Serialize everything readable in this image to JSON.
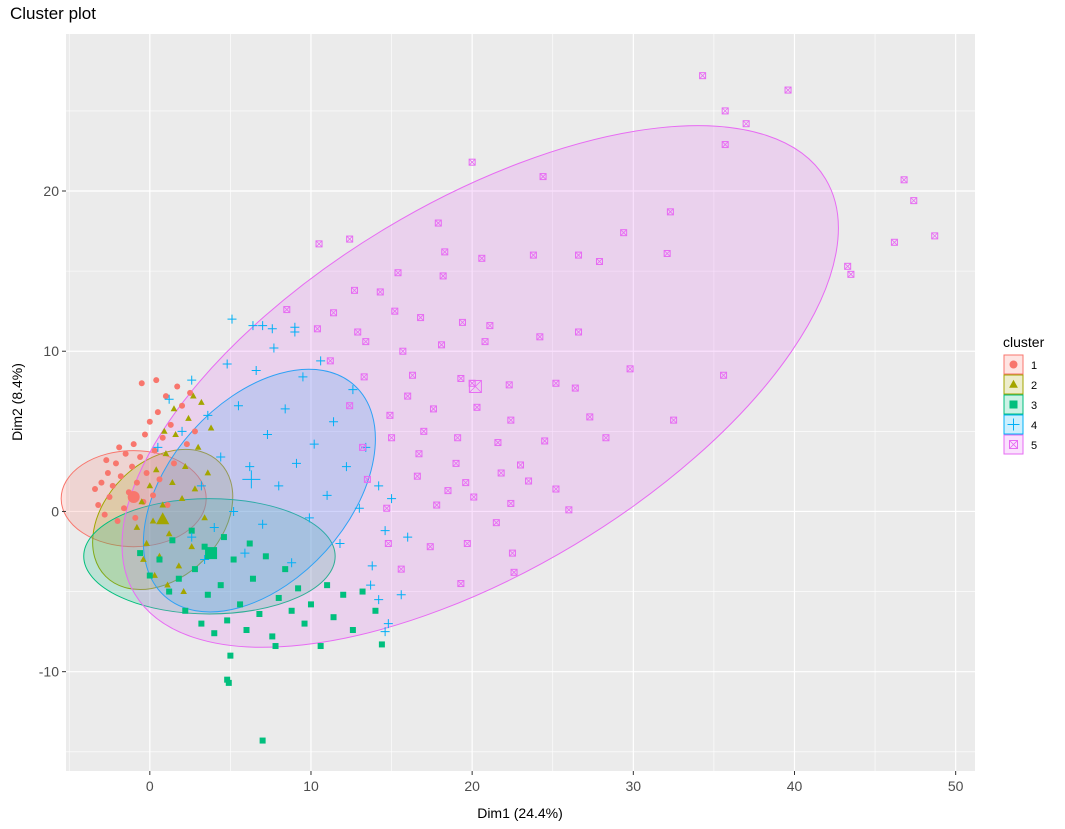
{
  "chart_data": {
    "type": "scatter",
    "title": "Cluster plot",
    "xlabel": "Dim1 (24.4%)",
    "ylabel": "Dim2 (8.4%)",
    "xlim": [
      -5.2,
      51.2
    ],
    "ylim": [
      -16.2,
      29.8
    ],
    "x_ticks": [
      0,
      10,
      20,
      30,
      40,
      50
    ],
    "y_ticks": [
      -10,
      0,
      10,
      20
    ],
    "grid": true,
    "legend": {
      "title": "cluster",
      "position": "right"
    },
    "series": [
      {
        "name": "1",
        "color": "#F8766D",
        "shape": "circle",
        "center": [
          -1.0,
          0.9
        ],
        "ellipse": {
          "cx": -1.0,
          "cy": 0.8,
          "rx": 4.5,
          "ry": 3.0,
          "angle": 0
        },
        "points": [
          [
            -3.4,
            1.4
          ],
          [
            -3.2,
            0.4
          ],
          [
            -3.0,
            1.8
          ],
          [
            -2.8,
            -0.2
          ],
          [
            -2.6,
            2.4
          ],
          [
            -2.5,
            0.9
          ],
          [
            -2.3,
            1.6
          ],
          [
            -2.1,
            3.0
          ],
          [
            -2.0,
            -0.6
          ],
          [
            -1.8,
            2.2
          ],
          [
            -1.6,
            0.2
          ],
          [
            -1.5,
            3.6
          ],
          [
            -1.3,
            1.2
          ],
          [
            -1.1,
            2.8
          ],
          [
            -1.0,
            4.2
          ],
          [
            -0.9,
            -0.4
          ],
          [
            -0.8,
            1.8
          ],
          [
            -0.6,
            3.4
          ],
          [
            -0.4,
            0.6
          ],
          [
            -0.3,
            4.8
          ],
          [
            -0.2,
            2.4
          ],
          [
            0.0,
            5.6
          ],
          [
            0.2,
            1.0
          ],
          [
            0.3,
            3.8
          ],
          [
            0.5,
            6.2
          ],
          [
            0.6,
            2.0
          ],
          [
            0.8,
            4.6
          ],
          [
            1.0,
            7.2
          ],
          [
            1.1,
            0.4
          ],
          [
            1.3,
            5.4
          ],
          [
            1.5,
            3.0
          ],
          [
            1.7,
            7.8
          ],
          [
            2.0,
            6.6
          ],
          [
            2.3,
            4.2
          ],
          [
            2.5,
            7.4
          ],
          [
            -0.5,
            8.0
          ],
          [
            0.4,
            8.2
          ],
          [
            2.8,
            5.0
          ],
          [
            -1.9,
            4.0
          ],
          [
            -2.7,
            3.2
          ]
        ]
      },
      {
        "name": "2",
        "color": "#A3A500",
        "shape": "triangle",
        "center": [
          0.8,
          -0.5
        ],
        "ellipse": {
          "cx": 0.8,
          "cy": -0.5,
          "rx": 5.0,
          "ry": 3.6,
          "angle": -45
        },
        "points": [
          [
            -0.8,
            -1.0
          ],
          [
            -0.5,
            0.6
          ],
          [
            -0.2,
            -2.0
          ],
          [
            0.0,
            1.6
          ],
          [
            0.2,
            -0.6
          ],
          [
            0.4,
            2.6
          ],
          [
            0.6,
            -2.8
          ],
          [
            0.8,
            0.4
          ],
          [
            1.0,
            3.6
          ],
          [
            1.2,
            -1.4
          ],
          [
            1.4,
            1.8
          ],
          [
            1.6,
            4.8
          ],
          [
            1.8,
            -3.4
          ],
          [
            2.0,
            0.8
          ],
          [
            2.2,
            2.8
          ],
          [
            2.4,
            5.8
          ],
          [
            2.6,
            -2.2
          ],
          [
            2.8,
            1.4
          ],
          [
            3.0,
            4.0
          ],
          [
            3.2,
            6.8
          ],
          [
            3.4,
            -0.4
          ],
          [
            3.6,
            2.4
          ],
          [
            -0.4,
            -3.0
          ],
          [
            0.3,
            -4.0
          ],
          [
            1.1,
            -4.6
          ],
          [
            2.1,
            -5.0
          ],
          [
            1.5,
            6.4
          ],
          [
            2.7,
            7.2
          ],
          [
            3.8,
            5.2
          ],
          [
            0.9,
            5.0
          ]
        ]
      },
      {
        "name": "3",
        "color": "#00BF7D",
        "shape": "square",
        "center": [
          3.8,
          -2.6
        ],
        "ellipse": {
          "cx": 3.7,
          "cy": -2.8,
          "rx": 7.8,
          "ry": 3.6,
          "angle": 0
        },
        "points": [
          [
            -0.6,
            -2.6
          ],
          [
            0.0,
            -4.0
          ],
          [
            0.6,
            -3.0
          ],
          [
            1.2,
            -5.0
          ],
          [
            1.8,
            -4.2
          ],
          [
            2.2,
            -6.2
          ],
          [
            2.8,
            -3.6
          ],
          [
            3.2,
            -7.0
          ],
          [
            3.6,
            -5.2
          ],
          [
            4.0,
            -7.6
          ],
          [
            4.4,
            -4.6
          ],
          [
            4.8,
            -6.8
          ],
          [
            5.2,
            -3.0
          ],
          [
            5.6,
            -5.8
          ],
          [
            6.0,
            -7.4
          ],
          [
            6.4,
            -4.2
          ],
          [
            6.8,
            -6.4
          ],
          [
            7.2,
            -2.8
          ],
          [
            7.6,
            -7.8
          ],
          [
            8.0,
            -5.4
          ],
          [
            8.4,
            -3.6
          ],
          [
            8.8,
            -6.2
          ],
          [
            9.2,
            -4.8
          ],
          [
            9.6,
            -7.0
          ],
          [
            10.0,
            -5.8
          ],
          [
            10.6,
            -8.4
          ],
          [
            11.0,
            -4.6
          ],
          [
            11.4,
            -6.6
          ],
          [
            12.0,
            -5.2
          ],
          [
            12.6,
            -7.4
          ],
          [
            13.2,
            -5.0
          ],
          [
            14.0,
            -6.2
          ],
          [
            14.4,
            -8.3
          ],
          [
            2.6,
            -1.2
          ],
          [
            3.4,
            -2.2
          ],
          [
            4.6,
            -1.6
          ],
          [
            6.2,
            -2.0
          ],
          [
            1.4,
            -1.8
          ],
          [
            7.8,
            -8.4
          ],
          [
            5.0,
            -9.0
          ],
          [
            4.8,
            -10.5
          ],
          [
            4.9,
            -10.7
          ],
          [
            7.0,
            -14.3
          ]
        ]
      },
      {
        "name": "4",
        "color": "#00B0F6",
        "shape": "plus",
        "center": [
          6.3,
          2.0
        ],
        "ellipse": {
          "cx": 6.8,
          "cy": 1.3,
          "rx": 8.8,
          "ry": 5.6,
          "angle": -48
        },
        "points": [
          [
            0.5,
            4.0
          ],
          [
            1.2,
            7.0
          ],
          [
            2.0,
            5.0
          ],
          [
            2.6,
            8.2
          ],
          [
            3.2,
            1.6
          ],
          [
            3.6,
            6.0
          ],
          [
            4.0,
            -1.0
          ],
          [
            4.4,
            3.4
          ],
          [
            4.8,
            9.2
          ],
          [
            5.2,
            0.0
          ],
          [
            5.5,
            6.6
          ],
          [
            5.9,
            -2.6
          ],
          [
            6.2,
            2.8
          ],
          [
            6.6,
            8.8
          ],
          [
            7.0,
            -0.8
          ],
          [
            7.3,
            4.8
          ],
          [
            7.7,
            10.2
          ],
          [
            8.0,
            1.6
          ],
          [
            8.4,
            6.4
          ],
          [
            8.8,
            -3.2
          ],
          [
            9.1,
            3.0
          ],
          [
            9.5,
            8.4
          ],
          [
            9.9,
            -0.4
          ],
          [
            10.2,
            4.2
          ],
          [
            10.6,
            9.4
          ],
          [
            11.0,
            1.0
          ],
          [
            11.4,
            5.6
          ],
          [
            11.8,
            -2.0
          ],
          [
            12.2,
            2.8
          ],
          [
            12.6,
            7.6
          ],
          [
            13.0,
            0.2
          ],
          [
            13.4,
            4.0
          ],
          [
            13.8,
            -3.4
          ],
          [
            14.2,
            1.6
          ],
          [
            14.6,
            -1.2
          ],
          [
            15.0,
            0.8
          ],
          [
            14.8,
            -7.0
          ],
          [
            14.6,
            -7.5
          ],
          [
            14.2,
            -5.5
          ],
          [
            13.7,
            -4.6
          ],
          [
            5.1,
            12.0
          ],
          [
            6.4,
            11.6
          ],
          [
            7.0,
            11.6
          ],
          [
            7.6,
            11.4
          ],
          [
            9.0,
            11.2
          ],
          [
            9.0,
            11.5
          ],
          [
            16.0,
            -1.6
          ],
          [
            15.6,
            -5.2
          ],
          [
            2.6,
            -1.6
          ],
          [
            3.4,
            -3.0
          ]
        ]
      },
      {
        "name": "5",
        "color": "#E76BF3",
        "shape": "square-cross",
        "center": [
          20.2,
          7.8
        ],
        "ellipse": {
          "cx": 20.5,
          "cy": 7.8,
          "rx": 25.0,
          "ry": 11.5,
          "angle": -31
        },
        "points": [
          [
            34.3,
            27.2
          ],
          [
            35.7,
            25.0
          ],
          [
            37.0,
            24.2
          ],
          [
            39.6,
            26.3
          ],
          [
            35.7,
            22.9
          ],
          [
            20.0,
            21.8
          ],
          [
            24.4,
            20.9
          ],
          [
            46.8,
            20.7
          ],
          [
            47.4,
            19.4
          ],
          [
            32.3,
            18.7
          ],
          [
            17.9,
            18.0
          ],
          [
            10.5,
            16.7
          ],
          [
            12.4,
            17.0
          ],
          [
            18.3,
            16.2
          ],
          [
            20.6,
            15.8
          ],
          [
            23.8,
            16.0
          ],
          [
            26.6,
            16.0
          ],
          [
            29.4,
            17.4
          ],
          [
            27.9,
            15.6
          ],
          [
            32.1,
            16.1
          ],
          [
            48.7,
            17.2
          ],
          [
            43.3,
            15.3
          ],
          [
            43.5,
            14.8
          ],
          [
            46.2,
            16.8
          ],
          [
            18.2,
            14.7
          ],
          [
            15.4,
            14.9
          ],
          [
            12.7,
            13.8
          ],
          [
            15.2,
            12.5
          ],
          [
            11.4,
            12.4
          ],
          [
            14.3,
            13.7
          ],
          [
            8.5,
            12.6
          ],
          [
            10.4,
            11.4
          ],
          [
            12.9,
            11.2
          ],
          [
            16.8,
            12.1
          ],
          [
            19.4,
            11.8
          ],
          [
            21.1,
            11.6
          ],
          [
            13.4,
            10.6
          ],
          [
            15.7,
            10.0
          ],
          [
            18.1,
            10.4
          ],
          [
            20.8,
            10.6
          ],
          [
            24.2,
            10.9
          ],
          [
            26.6,
            11.2
          ],
          [
            11.2,
            9.4
          ],
          [
            13.3,
            8.4
          ],
          [
            16.3,
            8.5
          ],
          [
            19.3,
            8.3
          ],
          [
            22.3,
            7.9
          ],
          [
            25.2,
            8.0
          ],
          [
            26.4,
            7.7
          ],
          [
            29.8,
            8.9
          ],
          [
            35.6,
            8.5
          ],
          [
            12.4,
            6.6
          ],
          [
            14.9,
            6.0
          ],
          [
            17.6,
            6.4
          ],
          [
            20.3,
            6.5
          ],
          [
            22.4,
            5.7
          ],
          [
            27.3,
            5.9
          ],
          [
            32.5,
            5.7
          ],
          [
            13.2,
            4.0
          ],
          [
            16.7,
            3.6
          ],
          [
            19.1,
            4.6
          ],
          [
            21.6,
            4.3
          ],
          [
            28.3,
            4.6
          ],
          [
            13.5,
            2.0
          ],
          [
            16.6,
            2.2
          ],
          [
            19.6,
            1.8
          ],
          [
            21.8,
            2.4
          ],
          [
            23.5,
            1.9
          ],
          [
            14.7,
            0.2
          ],
          [
            17.8,
            0.4
          ],
          [
            20.1,
            0.9
          ],
          [
            22.4,
            0.5
          ],
          [
            25.2,
            1.4
          ],
          [
            26.0,
            0.1
          ],
          [
            14.8,
            -2.0
          ],
          [
            17.4,
            -2.2
          ],
          [
            19.7,
            -2.0
          ],
          [
            22.5,
            -2.6
          ],
          [
            15.6,
            -3.6
          ],
          [
            19.3,
            -4.5
          ],
          [
            22.6,
            -3.8
          ],
          [
            18.5,
            1.3
          ],
          [
            21.5,
            -0.7
          ],
          [
            24.5,
            4.4
          ],
          [
            23.0,
            2.9
          ],
          [
            19.0,
            3.0
          ],
          [
            17.0,
            5.0
          ],
          [
            15.0,
            4.6
          ],
          [
            16.0,
            7.2
          ],
          [
            20.0,
            8.0
          ]
        ]
      }
    ]
  }
}
